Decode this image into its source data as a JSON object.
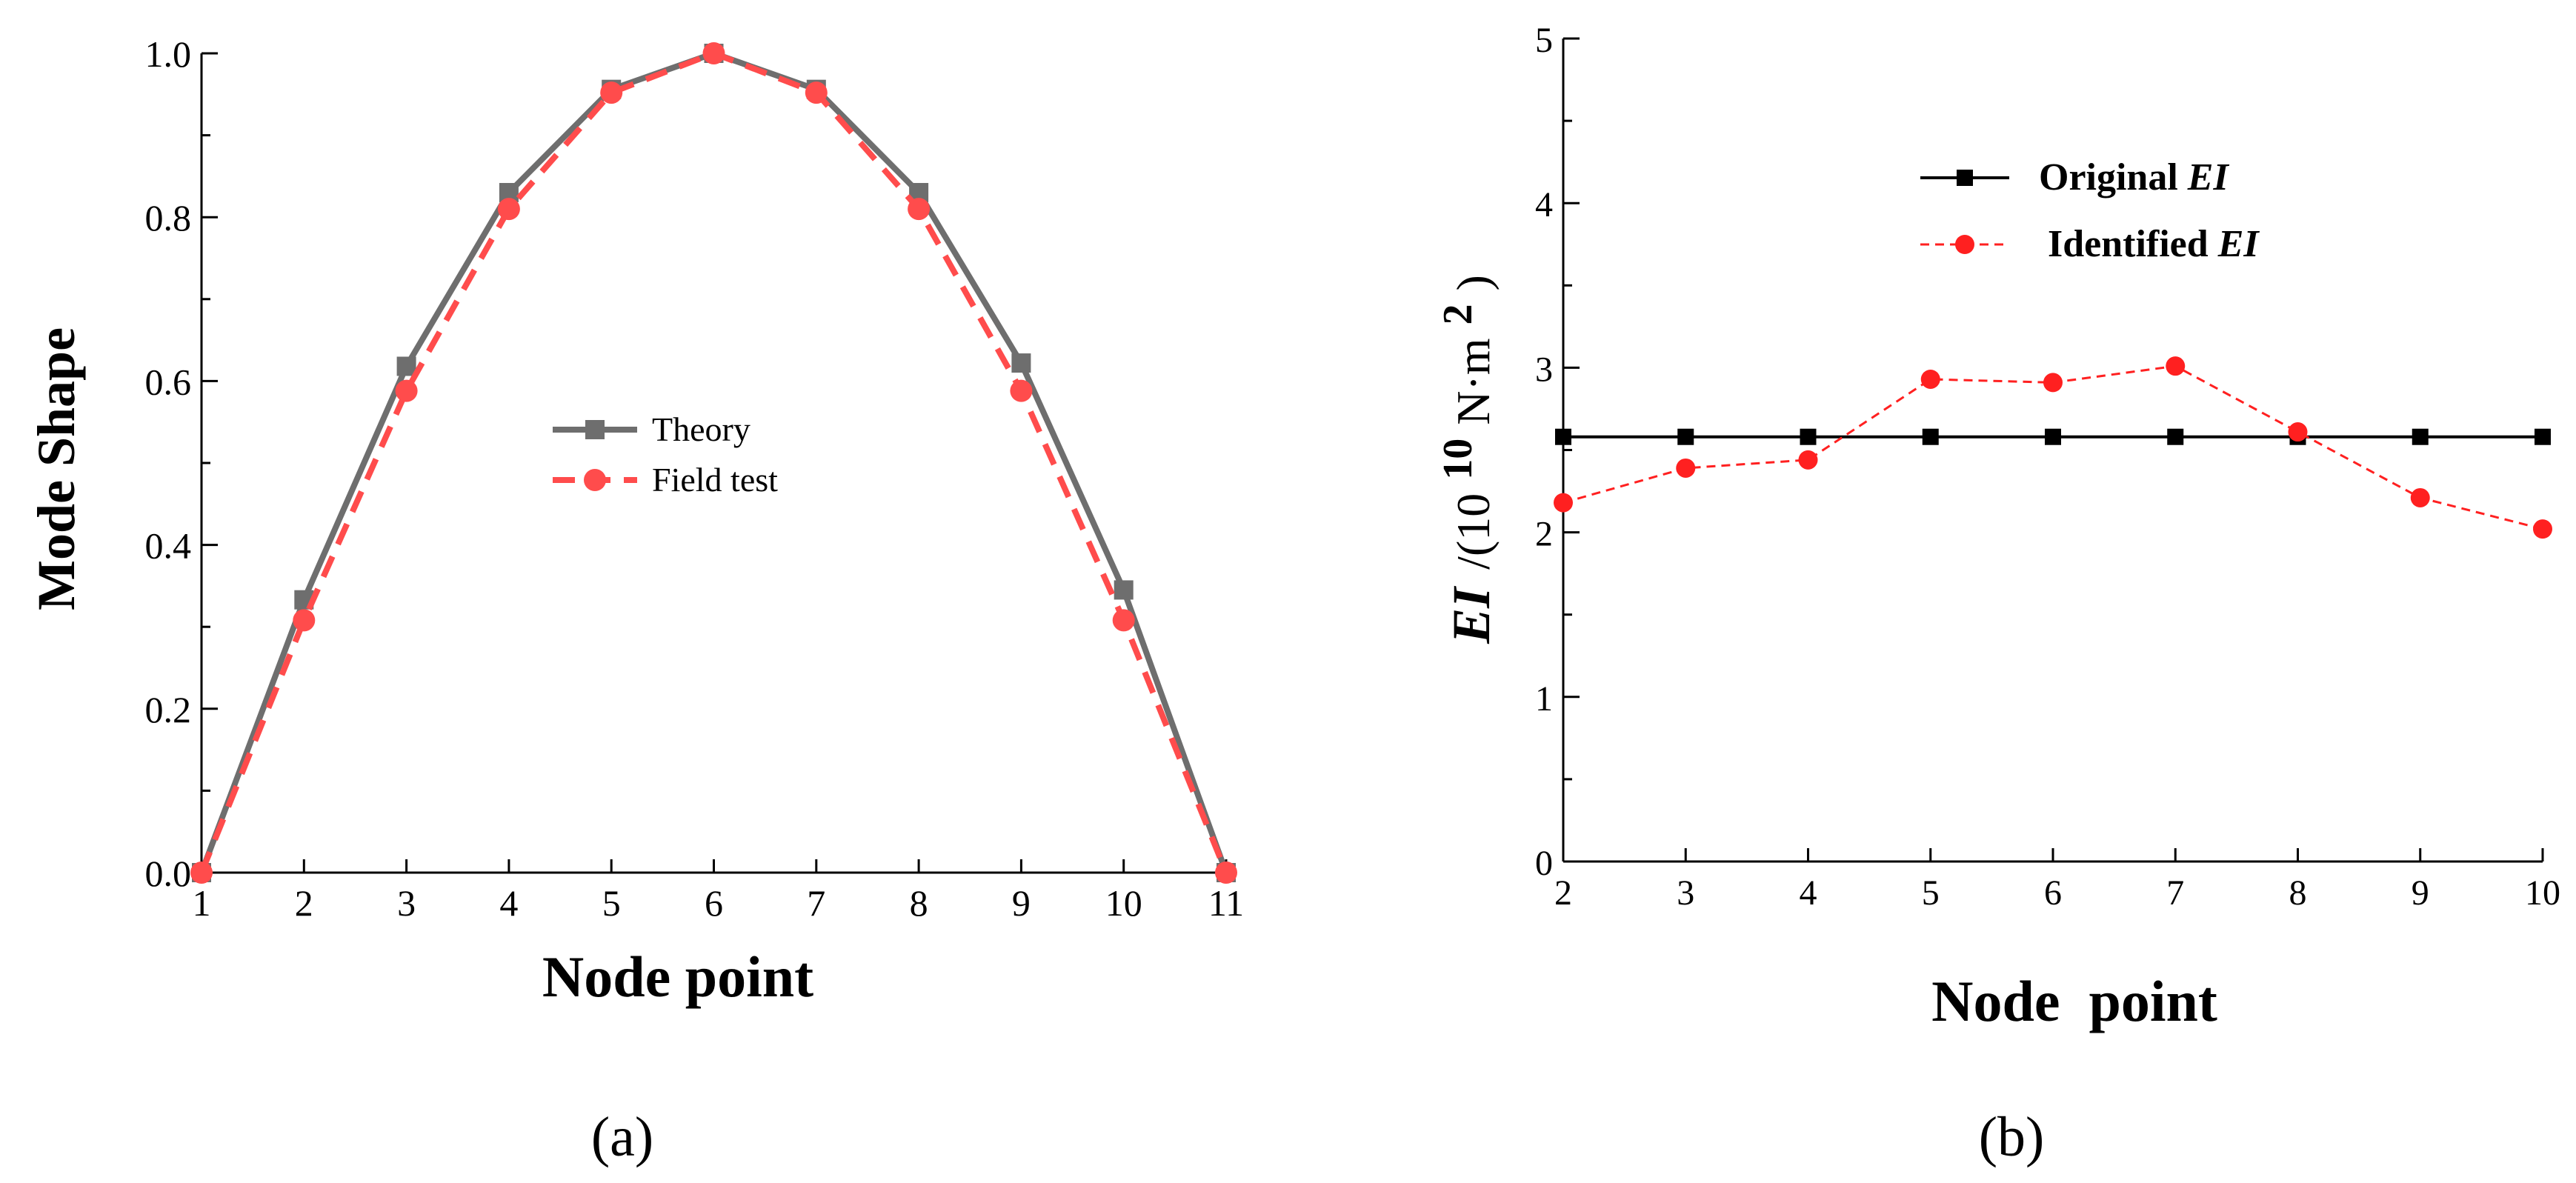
{
  "chart_data": [
    {
      "type": "line",
      "panel_label": "(a)",
      "xlabel": "Node point",
      "ylabel": "Mode Shape",
      "xlim": [
        1,
        11
      ],
      "ylim": [
        0,
        1.0
      ],
      "xticks": [
        "1",
        "2",
        "3",
        "4",
        "5",
        "6",
        "7",
        "8",
        "9",
        "10",
        "11"
      ],
      "yticks": [
        "0.0",
        "0.2",
        "0.4",
        "0.6",
        "0.8",
        "1.0"
      ],
      "x": [
        1,
        2,
        3,
        4,
        5,
        6,
        7,
        8,
        9,
        10,
        11
      ],
      "series": [
        {
          "name": "Theory",
          "color": "#6e6e6e",
          "marker": "square",
          "line": "solid",
          "values": [
            0.0,
            0.333,
            0.618,
            0.83,
            0.956,
            1.0,
            0.956,
            0.83,
            0.622,
            0.345,
            0.0
          ]
        },
        {
          "name": "Field test",
          "color": "#ff4c4c",
          "marker": "circle",
          "line": "dashed",
          "values": [
            0.0,
            0.308,
            0.588,
            0.81,
            0.952,
            1.0,
            0.952,
            0.81,
            0.588,
            0.308,
            0.0
          ]
        }
      ],
      "legend": "center-right"
    },
    {
      "type": "line",
      "panel_label": "(b)",
      "xlabel": "Node  point",
      "ylabel": {
        "prefix": "EI",
        "unit": "/(10",
        "exp": "10",
        "rest": "N·m",
        "exp2": "2",
        "close": ")"
      },
      "xlim": [
        2,
        10
      ],
      "ylim": [
        0,
        5
      ],
      "xticks": [
        "2",
        "3",
        "4",
        "5",
        "6",
        "7",
        "8",
        "9",
        "10"
      ],
      "yticks": [
        "0",
        "1",
        "2",
        "3",
        "4",
        "5"
      ],
      "x": [
        2,
        3,
        4,
        5,
        6,
        7,
        8,
        9,
        10
      ],
      "series": [
        {
          "name": {
            "pre": "Original ",
            "em": "EI"
          },
          "color": "#000000",
          "marker": "square",
          "line": "solid",
          "values": [
            2.58,
            2.58,
            2.58,
            2.58,
            2.58,
            2.58,
            2.58,
            2.58,
            2.58
          ]
        },
        {
          "name": {
            "pre": "Identified ",
            "em": "EI"
          },
          "color": "#ff2020",
          "marker": "circle",
          "line": "dashed",
          "values": [
            2.18,
            2.39,
            2.44,
            2.93,
            2.91,
            3.01,
            2.61,
            2.21,
            2.02
          ]
        }
      ],
      "legend": "top-left"
    }
  ]
}
